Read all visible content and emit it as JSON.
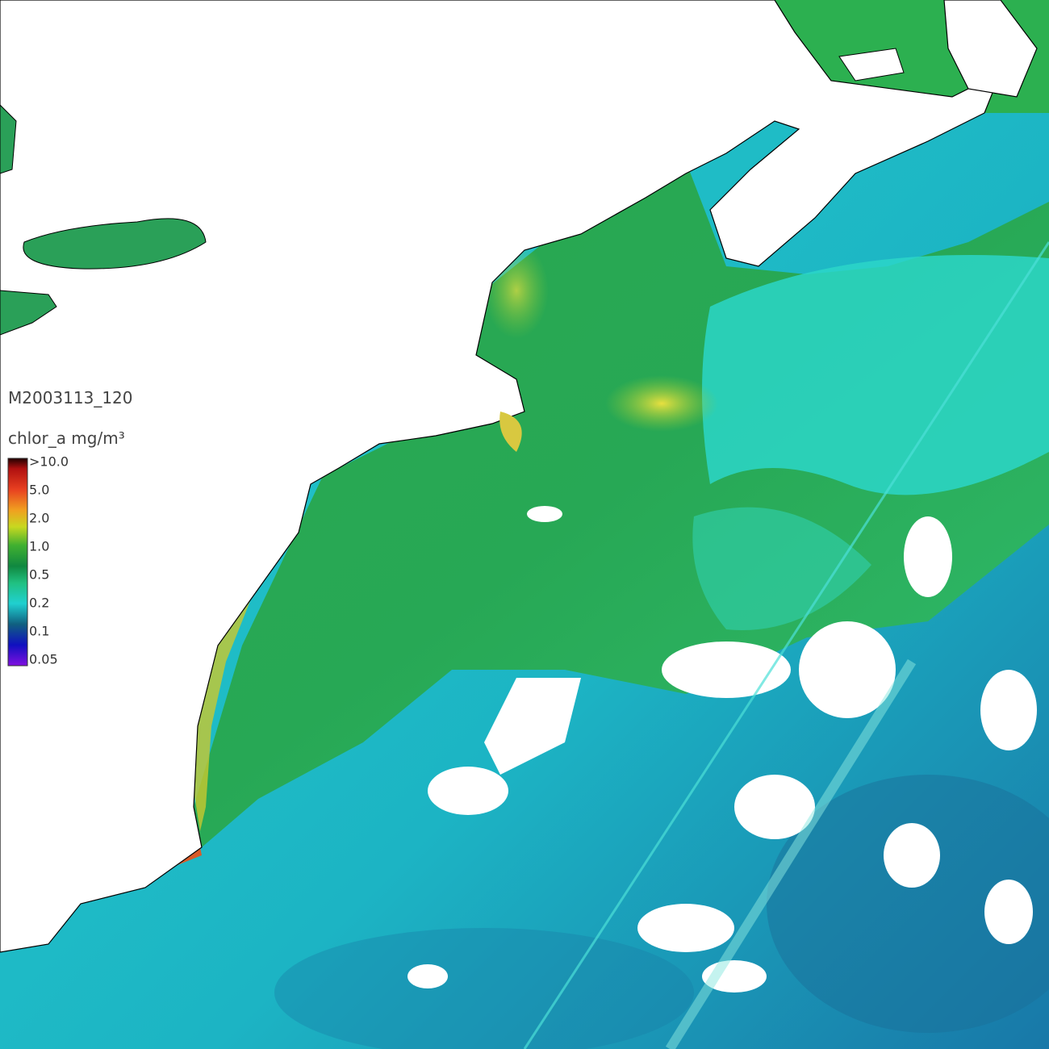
{
  "image_id": "M2003113_120",
  "legend": {
    "title": "chlor_a mg/m³",
    "labels": [
      ">10.0",
      "5.0",
      "2.0",
      "1.0",
      "0.5",
      "0.2",
      "0.1",
      "0.05"
    ]
  }
}
